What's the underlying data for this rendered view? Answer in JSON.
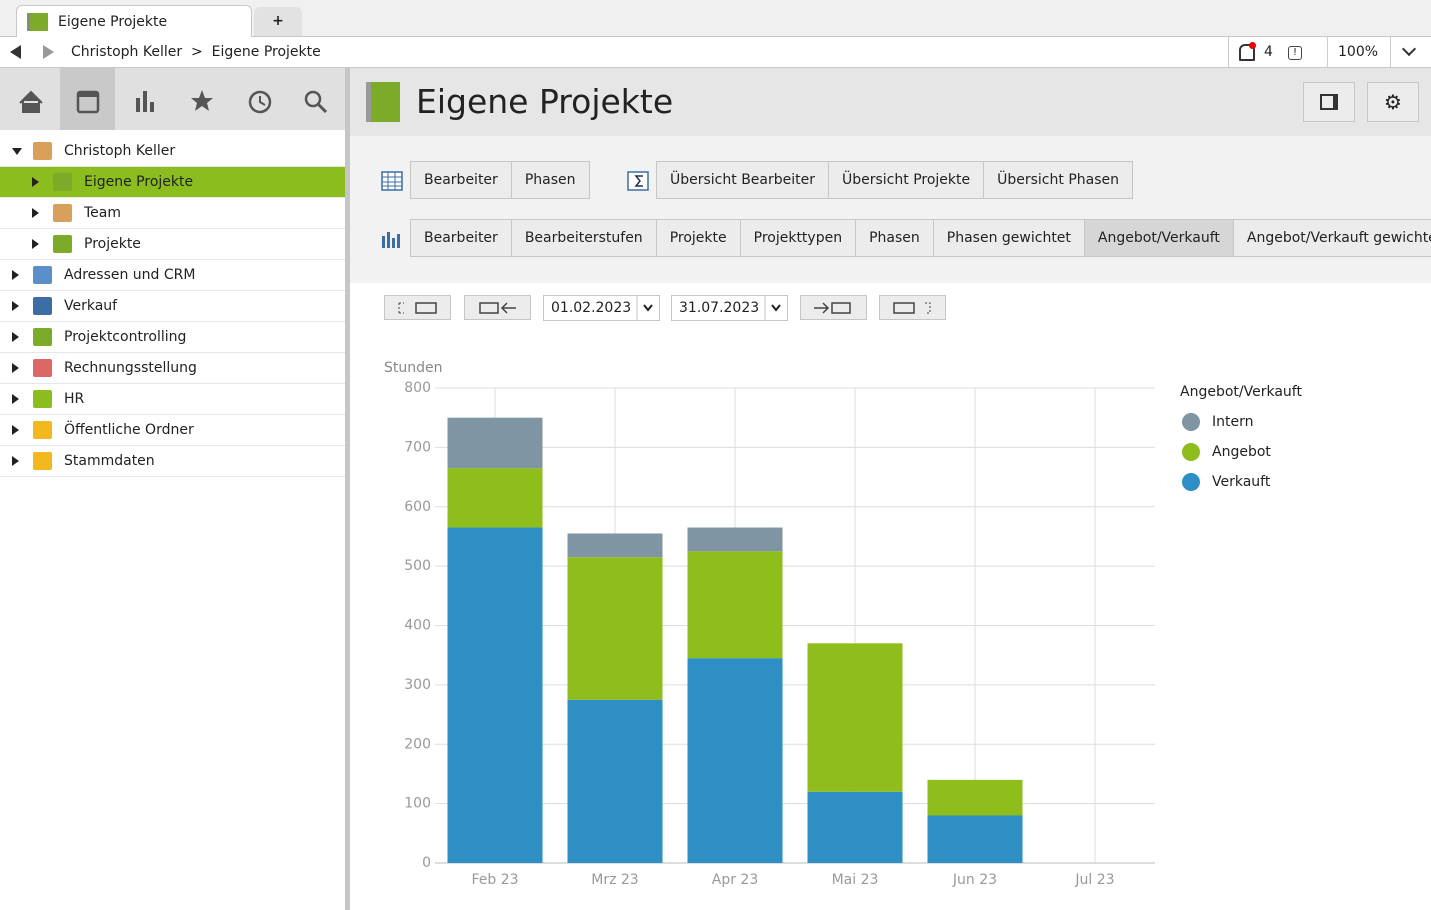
{
  "tabs": [
    "Eigene Projekte"
  ],
  "breadcrumb": [
    "Christoph Keller",
    "Eigene Projekte"
  ],
  "notifications": 4,
  "zoom": "100%",
  "tree": [
    {
      "label": "Christoph Keller",
      "level": 0,
      "expanded": true
    },
    {
      "label": "Eigene Projekte",
      "level": 1,
      "selected": true
    },
    {
      "label": "Team",
      "level": 1
    },
    {
      "label": "Projekte",
      "level": 1
    },
    {
      "label": "Adressen und CRM",
      "level": 0
    },
    {
      "label": "Verkauf",
      "level": 0
    },
    {
      "label": "Projektcontrolling",
      "level": 0
    },
    {
      "label": "Rechnungsstellung",
      "level": 0
    },
    {
      "label": "HR",
      "level": 0
    },
    {
      "label": "Öffentliche Ordner",
      "level": 0
    },
    {
      "label": "Stammdaten",
      "level": 0
    }
  ],
  "header": {
    "title": "Eigene Projekte"
  },
  "table_views": [
    "Bearbeiter",
    "Phasen"
  ],
  "overview_views": [
    "Übersicht Bearbeiter",
    "Übersicht Projekte",
    "Übersicht Phasen"
  ],
  "chart_views": {
    "items": [
      "Bearbeiter",
      "Bearbeiterstufen",
      "Projekte",
      "Projekttypen",
      "Phasen",
      "Phasen gewichtet",
      "Angebot/Verkauft",
      "Angebot/Verkauft gewichtet"
    ],
    "active": 6
  },
  "date_range": [
    "01.02.2023",
    "31.07.2023"
  ],
  "chart_data": {
    "type": "stacked_bar",
    "y_label": "Stunden",
    "legend_title": "Angebot/Verkauft",
    "categories": [
      "Feb 23",
      "Mrz 23",
      "Apr 23",
      "Mai 23",
      "Jun 23",
      "Jul 23"
    ],
    "series": [
      {
        "name": "Verkauft",
        "color": "#2e8fc4",
        "values": [
          565,
          275,
          345,
          120,
          80,
          0
        ]
      },
      {
        "name": "Angebot",
        "color": "#8fbe1c",
        "values": [
          100,
          240,
          180,
          250,
          60,
          0
        ]
      },
      {
        "name": "Intern",
        "color": "#7f95a3",
        "values": [
          85,
          40,
          40,
          0,
          0,
          0
        ]
      }
    ],
    "ylim": [
      0,
      800
    ],
    "yticks": [
      0,
      100,
      200,
      300,
      400,
      500,
      600,
      700,
      800
    ],
    "grid": true,
    "legend": "right"
  }
}
